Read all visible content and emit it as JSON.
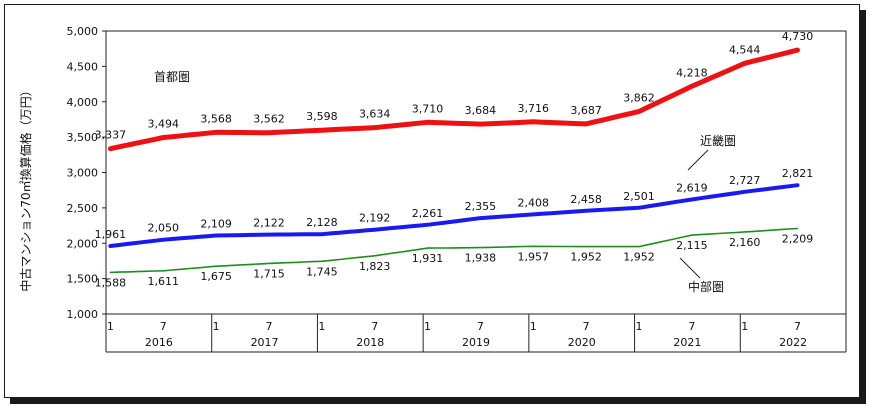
{
  "chart_data": {
    "type": "line",
    "ylabel": "中古マンション70㎡換算価格（万円）",
    "ylim": [
      1000,
      5000
    ],
    "yticks": [
      1000,
      1500,
      2000,
      2500,
      3000,
      3500,
      4000,
      4500,
      5000
    ],
    "ytick_labels": [
      "1,000",
      "1,500",
      "2,000",
      "2,500",
      "3,000",
      "3,500",
      "4,000",
      "4,500",
      "5,000"
    ],
    "years": [
      "2016",
      "2017",
      "2018",
      "2019",
      "2020",
      "2021",
      "2022"
    ],
    "month_labels": [
      "1",
      "7"
    ],
    "period": "2016-01 to 2022-07 (monthly)",
    "series": [
      {
        "name": "首都圏",
        "color": "#ee1111",
        "labeled_points": [
          {
            "x": "2016-01",
            "y": 3337,
            "label": "3,337"
          },
          {
            "x": "2016-07",
            "y": 3494,
            "label": "3,494"
          },
          {
            "x": "2017-01",
            "y": 3568,
            "label": "3,568"
          },
          {
            "x": "2017-07",
            "y": 3562,
            "label": "3,562"
          },
          {
            "x": "2018-01",
            "y": 3598,
            "label": "3,598"
          },
          {
            "x": "2018-07",
            "y": 3634,
            "label": "3,634"
          },
          {
            "x": "2019-01",
            "y": 3710,
            "label": "3,710"
          },
          {
            "x": "2019-07",
            "y": 3684,
            "label": "3,684"
          },
          {
            "x": "2020-01",
            "y": 3716,
            "label": "3,716"
          },
          {
            "x": "2020-07",
            "y": 3687,
            "label": "3,687"
          },
          {
            "x": "2021-01",
            "y": 3862,
            "label": "3,862"
          },
          {
            "x": "2021-07",
            "y": 4218,
            "label": "4,218"
          },
          {
            "x": "2022-01",
            "y": 4544,
            "label": "4,544"
          },
          {
            "x": "2022-07",
            "y": 4730,
            "label": "4,730"
          }
        ]
      },
      {
        "name": "近畿圏",
        "color": "#1a1aee",
        "labeled_points": [
          {
            "x": "2016-01",
            "y": 1961,
            "label": "1,961"
          },
          {
            "x": "2016-07",
            "y": 2050,
            "label": "2,050"
          },
          {
            "x": "2017-01",
            "y": 2109,
            "label": "2,109"
          },
          {
            "x": "2017-07",
            "y": 2122,
            "label": "2,122"
          },
          {
            "x": "2018-01",
            "y": 2128,
            "label": "2,128"
          },
          {
            "x": "2018-07",
            "y": 2192,
            "label": "2,192"
          },
          {
            "x": "2019-01",
            "y": 2261,
            "label": "2,261"
          },
          {
            "x": "2019-07",
            "y": 2355,
            "label": "2,355"
          },
          {
            "x": "2020-01",
            "y": 2408,
            "label": "2,408"
          },
          {
            "x": "2020-07",
            "y": 2458,
            "label": "2,458"
          },
          {
            "x": "2021-01",
            "y": 2501,
            "label": "2,501"
          },
          {
            "x": "2021-07",
            "y": 2619,
            "label": "2,619"
          },
          {
            "x": "2022-01",
            "y": 2727,
            "label": "2,727"
          },
          {
            "x": "2022-07",
            "y": 2821,
            "label": "2,821"
          }
        ]
      },
      {
        "name": "中部圏",
        "color": "#1e8c1e",
        "labeled_points": [
          {
            "x": "2016-01",
            "y": 1588,
            "label": "1,588"
          },
          {
            "x": "2016-07",
            "y": 1611,
            "label": "1,611"
          },
          {
            "x": "2017-01",
            "y": 1675,
            "label": "1,675"
          },
          {
            "x": "2017-07",
            "y": 1715,
            "label": "1,715"
          },
          {
            "x": "2018-01",
            "y": 1745,
            "label": "1,745"
          },
          {
            "x": "2018-07",
            "y": 1823,
            "label": "1,823"
          },
          {
            "x": "2019-01",
            "y": 1931,
            "label": "1,931"
          },
          {
            "x": "2019-07",
            "y": 1938,
            "label": "1,938"
          },
          {
            "x": "2020-01",
            "y": 1957,
            "label": "1,957"
          },
          {
            "x": "2020-07",
            "y": 1952,
            "label": "1,952"
          },
          {
            "x": "2021-01",
            "y": 1952,
            "label": "1,952"
          },
          {
            "x": "2021-07",
            "y": 2115,
            "label": "2,115"
          },
          {
            "x": "2022-01",
            "y": 2160,
            "label": "2,160"
          },
          {
            "x": "2022-07",
            "y": 2209,
            "label": "2,209"
          }
        ]
      }
    ],
    "grid": false,
    "legend": "inline labels"
  }
}
